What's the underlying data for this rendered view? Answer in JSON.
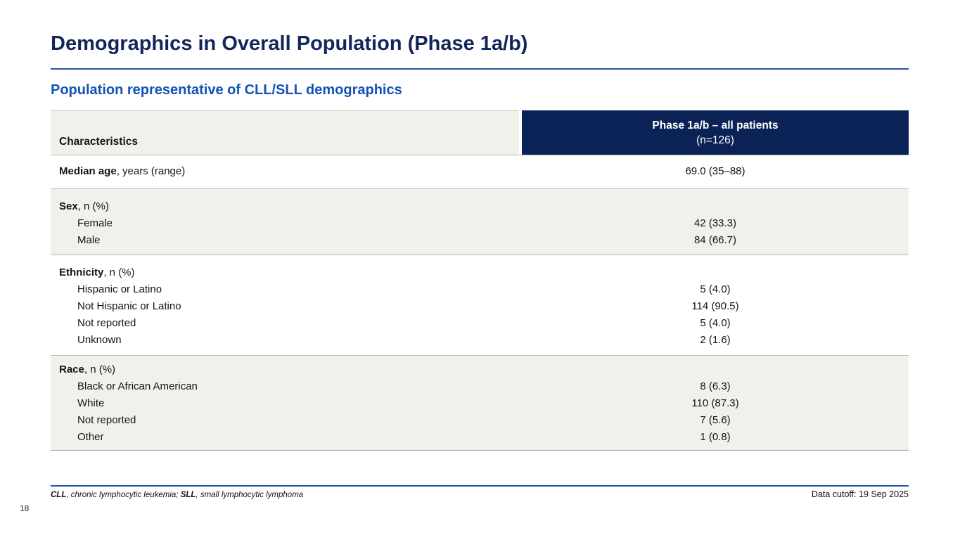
{
  "slide": {
    "title": "Demographics in Overall Population (Phase 1a/b)",
    "subtitle": "Population representative of CLL/SLL demographics",
    "page_number": "18",
    "data_cutoff": "Data cutoff: 19 Sep 2025",
    "footnote": {
      "abbr1": "CLL",
      "def1": ", chronic lymphocytic leukemia; ",
      "abbr2": "SLL",
      "def2": ", small lymphocytic lymphoma"
    }
  },
  "table": {
    "header": {
      "col1": "Characteristics",
      "col2_line1": "Phase 1a/b – all patients",
      "col2_line2": "(n=126)"
    },
    "sections": [
      {
        "rows": [
          {
            "bold": "Median age",
            "rest": ", years (range)",
            "indent": false,
            "value": "69.0 (35–88)"
          }
        ]
      },
      {
        "rows": [
          {
            "bold": "Sex",
            "rest": ", n (%)",
            "indent": false,
            "value": ""
          },
          {
            "bold": "",
            "rest": "Female",
            "indent": true,
            "value": "42 (33.3)"
          },
          {
            "bold": "",
            "rest": "Male",
            "indent": true,
            "value": "84 (66.7)"
          }
        ]
      },
      {
        "rows": [
          {
            "bold": "Ethnicity",
            "rest": ", n (%)",
            "indent": false,
            "value": ""
          },
          {
            "bold": "",
            "rest": "Hispanic or Latino",
            "indent": true,
            "value": "5 (4.0)"
          },
          {
            "bold": "",
            "rest": "Not Hispanic or Latino",
            "indent": true,
            "value": "114 (90.5)"
          },
          {
            "bold": "",
            "rest": "Not reported",
            "indent": true,
            "value": "5 (4.0)"
          },
          {
            "bold": "",
            "rest": "Unknown",
            "indent": true,
            "value": "2 (1.6)"
          }
        ]
      },
      {
        "rows": [
          {
            "bold": "Race",
            "rest": ", n (%)",
            "indent": false,
            "value": ""
          },
          {
            "bold": "",
            "rest": "Black or African American",
            "indent": true,
            "value": "8 (6.3)"
          },
          {
            "bold": "",
            "rest": "White",
            "indent": true,
            "value": "110 (87.3)"
          },
          {
            "bold": "",
            "rest": "Not reported",
            "indent": true,
            "value": "7 (5.6)"
          },
          {
            "bold": "",
            "rest": "Other",
            "indent": true,
            "value": "1 (0.8)"
          }
        ]
      }
    ]
  },
  "colors": {
    "header_navy": "#0b2256",
    "title_navy": "#13265c",
    "subtitle_blue": "#1452b4",
    "band_gray": "#f1f1ec",
    "rule_blue": "#2456b0"
  }
}
